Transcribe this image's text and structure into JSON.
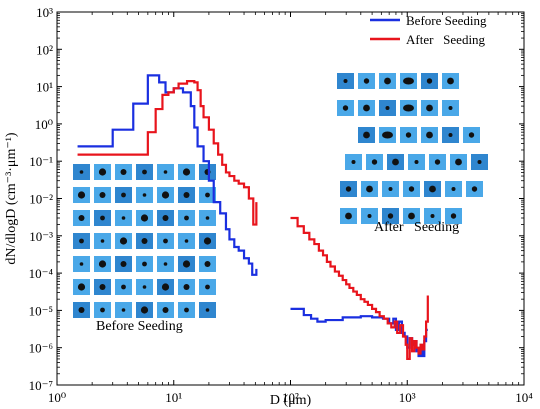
{
  "chart_data": {
    "type": "line",
    "xlabel": "D (μm)",
    "ylabel": "dN/dlogD (cm⁻³·μm⁻¹)",
    "x_scale": "log",
    "y_scale": "log",
    "xlim": [
      1,
      10000
    ],
    "ylim": [
      1e-07,
      1000
    ],
    "x_ticks": [
      {
        "value": 1,
        "label": "10⁰"
      },
      {
        "value": 10,
        "label": "10¹"
      },
      {
        "value": 100,
        "label": "10²"
      },
      {
        "value": 1000,
        "label": "10³"
      },
      {
        "value": 10000,
        "label": "10⁴"
      }
    ],
    "y_ticks": [
      {
        "value": 1e-07,
        "label": "10⁻⁷"
      },
      {
        "value": 1e-06,
        "label": "10⁻⁶"
      },
      {
        "value": 1e-05,
        "label": "10⁻⁵"
      },
      {
        "value": 0.0001,
        "label": "10⁻⁴"
      },
      {
        "value": 0.001,
        "label": "10⁻³"
      },
      {
        "value": 0.01,
        "label": "10⁻²"
      },
      {
        "value": 0.1,
        "label": "10⁻¹"
      },
      {
        "value": 1,
        "label": "10⁰"
      },
      {
        "value": 10,
        "label": "10¹"
      },
      {
        "value": 100,
        "label": "10²"
      },
      {
        "value": 1000,
        "label": "10³"
      }
    ],
    "legend_position": "top-right",
    "series": [
      {
        "name": "Before Seeding",
        "color": "#1a2fe0",
        "segments": [
          [
            [
              1.5,
              0.25
            ],
            [
              3.0,
              0.25
            ],
            [
              3.0,
              0.7
            ],
            [
              4.5,
              0.7
            ],
            [
              4.5,
              3.5
            ],
            [
              6.0,
              3.5
            ],
            [
              6.0,
              20
            ],
            [
              7.5,
              20
            ],
            [
              7.5,
              13
            ],
            [
              8.5,
              13
            ],
            [
              8.5,
              7
            ],
            [
              10,
              7
            ],
            [
              10,
              9
            ],
            [
              12,
              9
            ],
            [
              12,
              7
            ],
            [
              14,
              7
            ],
            [
              14,
              3
            ],
            [
              15,
              3
            ],
            [
              15,
              0.8
            ],
            [
              16,
              0.8
            ],
            [
              16,
              0.25
            ],
            [
              18,
              0.25
            ],
            [
              18,
              0.1
            ],
            [
              20,
              0.1
            ],
            [
              20,
              0.03
            ],
            [
              22,
              0.03
            ],
            [
              22,
              0.008
            ],
            [
              25,
              0.008
            ],
            [
              25,
              0.004
            ],
            [
              28,
              0.004
            ],
            [
              28,
              0.0015
            ],
            [
              30,
              0.0015
            ],
            [
              30,
              0.0008
            ],
            [
              33,
              0.0008
            ],
            [
              33,
              0.0005
            ],
            [
              36,
              0.0005
            ],
            [
              36,
              0.0004
            ],
            [
              40,
              0.0004
            ],
            [
              40,
              0.00025
            ],
            [
              44,
              0.00025
            ],
            [
              44,
              0.00018
            ],
            [
              47,
              0.00018
            ],
            [
              47,
              9e-05
            ],
            [
              51,
              9e-05
            ],
            [
              51,
              0.00013
            ]
          ],
          [
            [
              100,
              1.1e-05
            ],
            [
              130,
              1.1e-05
            ],
            [
              130,
              7.5e-06
            ],
            [
              150,
              7.5e-06
            ],
            [
              150,
              6e-06
            ],
            [
              170,
              6e-06
            ],
            [
              170,
              5e-06
            ],
            [
              200,
              5e-06
            ],
            [
              200,
              5.5e-06
            ],
            [
              280,
              5.5e-06
            ],
            [
              280,
              6.5e-06
            ],
            [
              400,
              6.5e-06
            ],
            [
              400,
              7e-06
            ],
            [
              500,
              7e-06
            ],
            [
              500,
              6.5e-06
            ],
            [
              620,
              6.5e-06
            ],
            [
              620,
              6e-06
            ],
            [
              700,
              6e-06
            ],
            [
              700,
              4.5e-06
            ],
            [
              760,
              4.5e-06
            ],
            [
              760,
              6e-06
            ],
            [
              800,
              6e-06
            ],
            [
              800,
              3e-06
            ],
            [
              850,
              3e-06
            ],
            [
              850,
              5e-06
            ],
            [
              900,
              5e-06
            ],
            [
              900,
              2.5e-06
            ],
            [
              950,
              2.5e-06
            ],
            [
              950,
              2e-06
            ],
            [
              1000,
              2e-06
            ],
            [
              1000,
              1e-06
            ],
            [
              1050,
              1e-06
            ],
            [
              1050,
              1.8e-06
            ],
            [
              1100,
              1.8e-06
            ],
            [
              1100,
              1.2e-06
            ],
            [
              1150,
              1.2e-06
            ],
            [
              1150,
              1.5e-06
            ],
            [
              1200,
              1.5e-06
            ],
            [
              1200,
              8e-07
            ],
            [
              1250,
              8e-07
            ],
            [
              1250,
              6e-07
            ],
            [
              1300,
              6e-07
            ],
            [
              1300,
              9e-07
            ],
            [
              1350,
              9e-07
            ],
            [
              1350,
              6e-07
            ],
            [
              1400,
              6e-07
            ],
            [
              1400,
              1.5e-06
            ],
            [
              1450,
              1.5e-06
            ],
            [
              1450,
              3e-06
            ],
            [
              1500,
              3e-06
            ]
          ]
        ]
      },
      {
        "name": "After   Seeding",
        "color": "#e8141c",
        "segments": [
          [
            [
              1.5,
              0.15
            ],
            [
              6.0,
              0.15
            ],
            [
              6.0,
              0.6
            ],
            [
              7.0,
              0.6
            ],
            [
              7.0,
              2.5
            ],
            [
              8.0,
              2.5
            ],
            [
              8.0,
              6
            ],
            [
              9.0,
              6
            ],
            [
              9.0,
              7
            ],
            [
              10,
              7
            ],
            [
              10,
              9
            ],
            [
              11,
              9
            ],
            [
              11,
              12
            ],
            [
              13,
              12
            ],
            [
              13,
              14
            ],
            [
              15,
              14
            ],
            [
              15,
              13
            ],
            [
              16,
              13
            ],
            [
              16,
              8
            ],
            [
              17,
              8
            ],
            [
              17,
              3
            ],
            [
              18,
              3
            ],
            [
              18,
              1.5
            ],
            [
              20,
              1.5
            ],
            [
              20,
              0.7
            ],
            [
              22,
              0.7
            ],
            [
              22,
              0.3
            ],
            [
              24,
              0.3
            ],
            [
              24,
              0.15
            ],
            [
              26,
              0.15
            ],
            [
              26,
              0.08
            ],
            [
              28,
              0.08
            ],
            [
              28,
              0.05
            ],
            [
              30,
              0.05
            ],
            [
              30,
              0.04
            ],
            [
              33,
              0.04
            ],
            [
              33,
              0.03
            ],
            [
              36,
              0.03
            ],
            [
              36,
              0.025
            ],
            [
              40,
              0.025
            ],
            [
              40,
              0.02
            ],
            [
              44,
              0.02
            ],
            [
              44,
              0.01
            ],
            [
              48,
              0.01
            ],
            [
              48,
              0.002
            ],
            [
              51,
              0.002
            ],
            [
              51,
              0.008
            ]
          ],
          [
            [
              100,
              0.003
            ],
            [
              115,
              0.003
            ],
            [
              115,
              0.0018
            ],
            [
              130,
              0.0018
            ],
            [
              130,
              0.0012
            ],
            [
              145,
              0.0012
            ],
            [
              145,
              0.0008
            ],
            [
              160,
              0.0008
            ],
            [
              160,
              0.0006
            ],
            [
              175,
              0.0006
            ],
            [
              175,
              0.0004
            ],
            [
              190,
              0.0004
            ],
            [
              190,
              0.0003
            ],
            [
              205,
              0.0003
            ],
            [
              205,
              0.0002
            ],
            [
              220,
              0.0002
            ],
            [
              220,
              0.00015
            ],
            [
              240,
              0.00015
            ],
            [
              240,
              0.00011
            ],
            [
              260,
              0.00011
            ],
            [
              260,
              8.5e-05
            ],
            [
              280,
              8.5e-05
            ],
            [
              280,
              6.5e-05
            ],
            [
              300,
              6.5e-05
            ],
            [
              300,
              5e-05
            ],
            [
              320,
              5e-05
            ],
            [
              320,
              4e-05
            ],
            [
              345,
              4e-05
            ],
            [
              345,
              3.2e-05
            ],
            [
              370,
              3.2e-05
            ],
            [
              370,
              2.6e-05
            ],
            [
              400,
              2.6e-05
            ],
            [
              400,
              2e-05
            ],
            [
              430,
              2e-05
            ],
            [
              430,
              1.7e-05
            ],
            [
              460,
              1.7e-05
            ],
            [
              460,
              1.4e-05
            ],
            [
              500,
              1.4e-05
            ],
            [
              500,
              1.1e-05
            ],
            [
              540,
              1.1e-05
            ],
            [
              540,
              9e-06
            ],
            [
              580,
              9e-06
            ],
            [
              580,
              7e-06
            ],
            [
              630,
              7e-06
            ],
            [
              630,
              6e-06
            ],
            [
              680,
              6e-06
            ],
            [
              680,
              4.5e-06
            ],
            [
              730,
              4.5e-06
            ],
            [
              730,
              3.5e-06
            ],
            [
              780,
              3.5e-06
            ],
            [
              780,
              5e-06
            ],
            [
              820,
              5e-06
            ],
            [
              820,
              2.5e-06
            ],
            [
              870,
              2.5e-06
            ],
            [
              870,
              4e-06
            ],
            [
              920,
              4e-06
            ],
            [
              920,
              2e-06
            ],
            [
              970,
              2e-06
            ],
            [
              970,
              1.2e-06
            ],
            [
              1000,
              1.2e-06
            ],
            [
              1000,
              5e-07
            ],
            [
              1050,
              5e-07
            ],
            [
              1050,
              1.8e-06
            ],
            [
              1100,
              1.8e-06
            ],
            [
              1100,
              8e-07
            ],
            [
              1150,
              8e-07
            ],
            [
              1150,
              1.5e-06
            ],
            [
              1200,
              1.5e-06
            ],
            [
              1200,
              1e-06
            ],
            [
              1250,
              1e-06
            ],
            [
              1250,
              7e-07
            ],
            [
              1300,
              7e-07
            ],
            [
              1300,
              1.2e-06
            ],
            [
              1350,
              1.2e-06
            ],
            [
              1350,
              9e-07
            ],
            [
              1400,
              9e-07
            ],
            [
              1400,
              2e-06
            ],
            [
              1450,
              2e-06
            ],
            [
              1450,
              5e-06
            ],
            [
              1500,
              5e-06
            ],
            [
              1500,
              2.5e-05
            ]
          ]
        ]
      }
    ],
    "annotations": [
      {
        "id": "before",
        "text": "Before Seeding"
      },
      {
        "id": "after",
        "text": "After   Seeding"
      }
    ],
    "particle_images": {
      "before_grid": {
        "rows": 7,
        "cols": 7
      },
      "after_rows": [
        6,
        6,
        6,
        7,
        7,
        6
      ],
      "tile_color": "#4aa8e8",
      "tile_color_dark": "#2f86cf",
      "particle_color": "#111111"
    }
  }
}
